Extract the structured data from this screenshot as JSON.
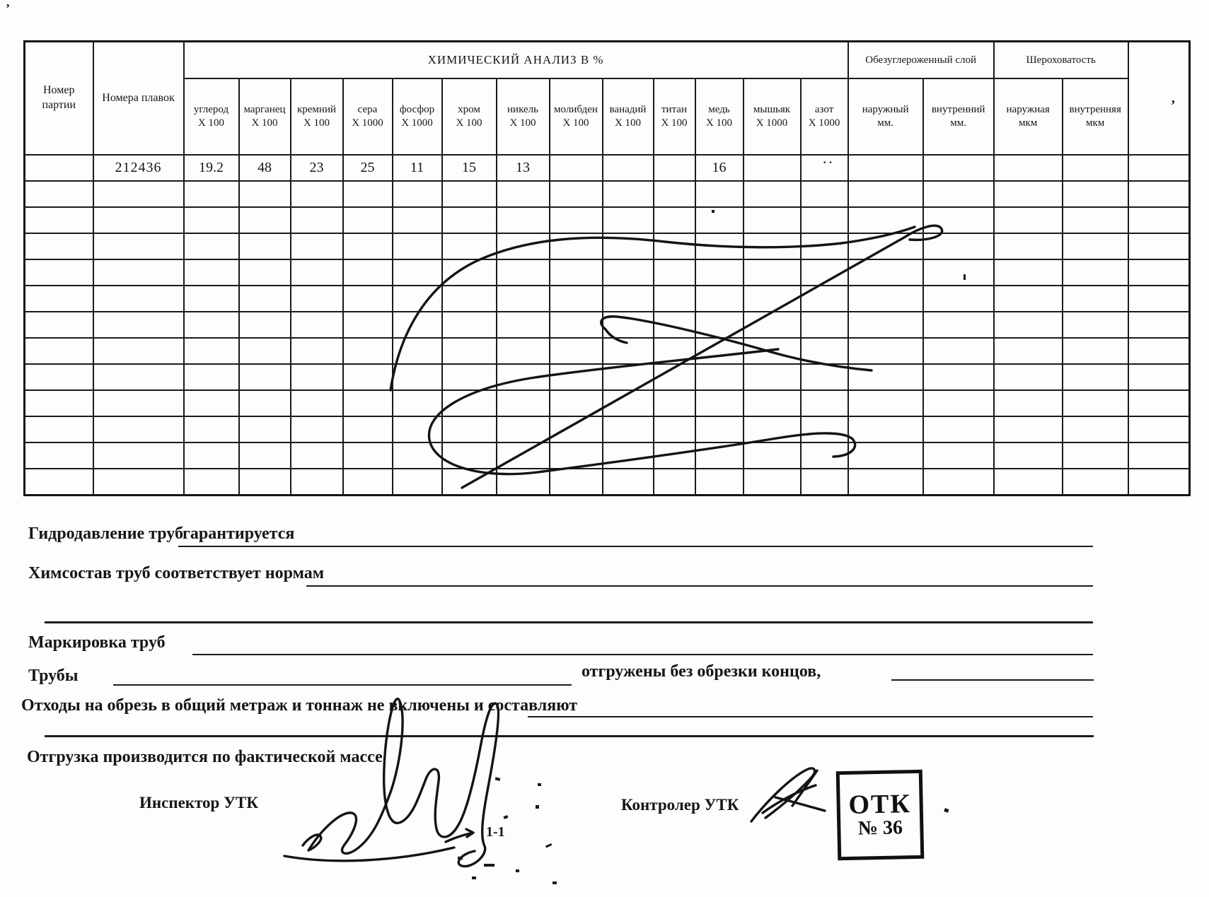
{
  "table": {
    "batch_col": "Номер партии",
    "heats_col": "Номера плавок",
    "chem_title": "ХИМИЧЕСКИЙ АНАЛИЗ  В  %",
    "chem_columns": [
      {
        "name": "углерод",
        "factor": "X 100"
      },
      {
        "name": "марганец",
        "factor": "X 100"
      },
      {
        "name": "кремний",
        "factor": "X 100"
      },
      {
        "name": "сера",
        "factor": "X 1000"
      },
      {
        "name": "фосфор",
        "factor": "X 1000"
      },
      {
        "name": "хром",
        "factor": "X 100"
      },
      {
        "name": "никель",
        "factor": "X 100"
      },
      {
        "name": "молибден",
        "factor": "X 100"
      },
      {
        "name": "ванадий",
        "factor": "X 100"
      },
      {
        "name": "титан",
        "factor": "X 100"
      },
      {
        "name": "медь",
        "factor": "X 100"
      },
      {
        "name": "мышьяк",
        "factor": "X 1000"
      },
      {
        "name": "азот",
        "factor": "X 1000"
      }
    ],
    "decarb_title": "Обезуглероженный слой",
    "decarb_sub": [
      {
        "name": "наружный",
        "unit": "мм."
      },
      {
        "name": "внутренний",
        "unit": "мм."
      }
    ],
    "rough_title": "Шероховатость",
    "rough_sub": [
      {
        "name": "наружная",
        "unit": "мкм"
      },
      {
        "name": "внутренняя",
        "unit": "мкм"
      }
    ],
    "data_row": {
      "batch": "",
      "heats": "212436",
      "chem": [
        "19.2",
        "48",
        "23",
        "25",
        "11",
        "15",
        "13",
        "",
        "",
        "",
        "16",
        "",
        ""
      ],
      "decarb": [
        "",
        ""
      ],
      "rough": [
        "",
        ""
      ],
      "extra": ""
    },
    "empty_rows": 12
  },
  "footer": {
    "hydro_label": "Гидродавление труб",
    "hydro_value": "гарантируется",
    "chem_label": "Химсостав труб соответствует нормам",
    "marking_label": "Маркировка труб",
    "pipes_label": "Трубы",
    "shipped_text": "отгружены без обрезки концов,",
    "waste_label": "Отходы на обрезь в общий метраж и тоннаж не включены и составляют",
    "shipping_label": "Отгрузка производится по фактической массе",
    "inspector_label": "Инспектор  УТК",
    "controller_label": "Контролер УТК",
    "page_mark": "1-1",
    "stamp_line1": "ОТК",
    "stamp_line2": "№ 36"
  },
  "marks": {
    "top_left": "’",
    "header_comma": "‚",
    "cell_mark": "··"
  }
}
